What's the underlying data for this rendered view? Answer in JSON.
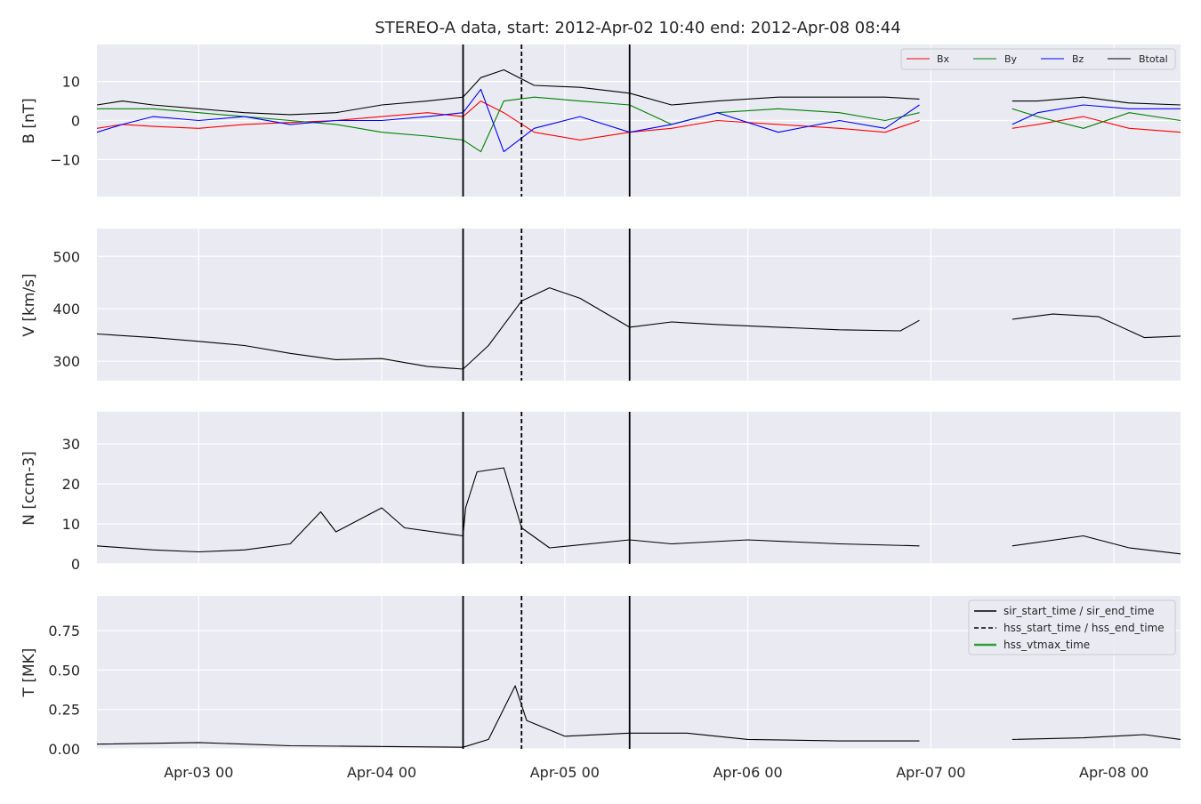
{
  "figure": {
    "title": "STEREO-A data, start: 2012-Apr-02 10:40  end: 2012-Apr-08 08:44"
  },
  "chart_data": {
    "type": "line",
    "time_axis": {
      "start": "2012-Apr-02 10:40",
      "end": "2012-Apr-08 08:44",
      "ticks": [
        {
          "t": "2012-Apr-03 00:00",
          "label": "Apr-03 00"
        },
        {
          "t": "2012-Apr-04 00:00",
          "label": "Apr-04 00"
        },
        {
          "t": "2012-Apr-05 00:00",
          "label": "Apr-05 00"
        },
        {
          "t": "2012-Apr-06 00:00",
          "label": "Apr-06 00"
        },
        {
          "t": "2012-Apr-07 00:00",
          "label": "Apr-07 00"
        },
        {
          "t": "2012-Apr-08 00:00",
          "label": "Apr-08 00"
        }
      ],
      "data_gap": [
        "2012-Apr-06 22:30",
        "2012-Apr-07 10:40"
      ]
    },
    "event_lines": [
      {
        "t": "2012-Apr-04 10:40",
        "style": "solid"
      },
      {
        "t": "2012-Apr-04 18:20",
        "style": "dashed"
      },
      {
        "t": "2012-Apr-05 08:30",
        "style": "solid"
      }
    ],
    "panels": [
      {
        "id": "b",
        "ylabel": "B [nT]",
        "ylim": [
          -19.5,
          19.5
        ],
        "yticks": [
          {
            "v": 10,
            "label": "10"
          },
          {
            "v": 0,
            "label": "0"
          },
          {
            "v": -10,
            "label": "−10"
          }
        ],
        "series": [
          {
            "name": "Bx",
            "color": "#ff0000",
            "points": [
              [
                "2012-Apr-02 10:40",
                -2
              ],
              [
                "2012-Apr-02 14:00",
                -1
              ],
              [
                "2012-Apr-02 18:00",
                -1.5
              ],
              [
                "2012-Apr-03 00:00",
                -2
              ],
              [
                "2012-Apr-03 06:00",
                -1
              ],
              [
                "2012-Apr-03 12:00",
                -0.5
              ],
              [
                "2012-Apr-03 18:00",
                0
              ],
              [
                "2012-Apr-04 00:00",
                1
              ],
              [
                "2012-Apr-04 06:00",
                2
              ],
              [
                "2012-Apr-04 10:40",
                1
              ],
              [
                "2012-Apr-04 13:00",
                5
              ],
              [
                "2012-Apr-04 16:00",
                2
              ],
              [
                "2012-Apr-04 20:00",
                -3
              ],
              [
                "2012-Apr-05 02:00",
                -5
              ],
              [
                "2012-Apr-05 08:30",
                -3
              ],
              [
                "2012-Apr-05 14:00",
                -2
              ],
              [
                "2012-Apr-05 20:00",
                0
              ],
              [
                "2012-Apr-06 04:00",
                -1
              ],
              [
                "2012-Apr-06 12:00",
                -2
              ],
              [
                "2012-Apr-06 18:00",
                -3
              ],
              [
                "2012-Apr-06 22:30",
                0
              ],
              null,
              [
                "2012-Apr-07 10:40",
                -2
              ],
              [
                "2012-Apr-07 14:00",
                -1
              ],
              [
                "2012-Apr-07 20:00",
                1
              ],
              [
                "2012-Apr-08 02:00",
                -2
              ],
              [
                "2012-Apr-08 08:44",
                -3
              ]
            ]
          },
          {
            "name": "By",
            "color": "#008000",
            "points": [
              [
                "2012-Apr-02 10:40",
                3
              ],
              [
                "2012-Apr-02 14:00",
                3
              ],
              [
                "2012-Apr-02 18:00",
                3
              ],
              [
                "2012-Apr-03 00:00",
                2
              ],
              [
                "2012-Apr-03 06:00",
                1
              ],
              [
                "2012-Apr-03 12:00",
                0
              ],
              [
                "2012-Apr-03 18:00",
                -1
              ],
              [
                "2012-Apr-04 00:00",
                -3
              ],
              [
                "2012-Apr-04 06:00",
                -4
              ],
              [
                "2012-Apr-04 10:40",
                -5
              ],
              [
                "2012-Apr-04 13:00",
                -8
              ],
              [
                "2012-Apr-04 16:00",
                5
              ],
              [
                "2012-Apr-04 20:00",
                6
              ],
              [
                "2012-Apr-05 02:00",
                5
              ],
              [
                "2012-Apr-05 08:30",
                4
              ],
              [
                "2012-Apr-05 14:00",
                -1
              ],
              [
                "2012-Apr-05 20:00",
                2
              ],
              [
                "2012-Apr-06 04:00",
                3
              ],
              [
                "2012-Apr-06 12:00",
                2
              ],
              [
                "2012-Apr-06 18:00",
                0
              ],
              [
                "2012-Apr-06 22:30",
                2
              ],
              null,
              [
                "2012-Apr-07 10:40",
                3
              ],
              [
                "2012-Apr-07 14:00",
                1
              ],
              [
                "2012-Apr-07 20:00",
                -2
              ],
              [
                "2012-Apr-08 02:00",
                2
              ],
              [
                "2012-Apr-08 08:44",
                0
              ]
            ]
          },
          {
            "name": "Bz",
            "color": "#0000ff",
            "points": [
              [
                "2012-Apr-02 10:40",
                -3
              ],
              [
                "2012-Apr-02 14:00",
                -1
              ],
              [
                "2012-Apr-02 18:00",
                1
              ],
              [
                "2012-Apr-03 00:00",
                0
              ],
              [
                "2012-Apr-03 06:00",
                1
              ],
              [
                "2012-Apr-03 12:00",
                -1
              ],
              [
                "2012-Apr-03 18:00",
                0
              ],
              [
                "2012-Apr-04 00:00",
                0
              ],
              [
                "2012-Apr-04 06:00",
                1
              ],
              [
                "2012-Apr-04 10:40",
                2
              ],
              [
                "2012-Apr-04 13:00",
                8
              ],
              [
                "2012-Apr-04 16:00",
                -8
              ],
              [
                "2012-Apr-04 20:00",
                -2
              ],
              [
                "2012-Apr-05 02:00",
                1
              ],
              [
                "2012-Apr-05 08:30",
                -3
              ],
              [
                "2012-Apr-05 14:00",
                -1
              ],
              [
                "2012-Apr-05 20:00",
                2
              ],
              [
                "2012-Apr-06 04:00",
                -3
              ],
              [
                "2012-Apr-06 12:00",
                0
              ],
              [
                "2012-Apr-06 18:00",
                -2
              ],
              [
                "2012-Apr-06 22:30",
                4
              ],
              null,
              [
                "2012-Apr-07 10:40",
                -1
              ],
              [
                "2012-Apr-07 14:00",
                2
              ],
              [
                "2012-Apr-07 20:00",
                4
              ],
              [
                "2012-Apr-08 02:00",
                3
              ],
              [
                "2012-Apr-08 08:44",
                3
              ]
            ]
          },
          {
            "name": "Btotal",
            "color": "#000000",
            "points": [
              [
                "2012-Apr-02 10:40",
                4
              ],
              [
                "2012-Apr-02 14:00",
                5
              ],
              [
                "2012-Apr-02 18:00",
                4
              ],
              [
                "2012-Apr-03 00:00",
                3
              ],
              [
                "2012-Apr-03 06:00",
                2
              ],
              [
                "2012-Apr-03 12:00",
                1.5
              ],
              [
                "2012-Apr-03 18:00",
                2
              ],
              [
                "2012-Apr-04 00:00",
                4
              ],
              [
                "2012-Apr-04 06:00",
                5
              ],
              [
                "2012-Apr-04 10:40",
                6
              ],
              [
                "2012-Apr-04 13:00",
                11
              ],
              [
                "2012-Apr-04 16:00",
                13
              ],
              [
                "2012-Apr-04 20:00",
                9
              ],
              [
                "2012-Apr-05 02:00",
                8.5
              ],
              [
                "2012-Apr-05 08:30",
                7
              ],
              [
                "2012-Apr-05 14:00",
                4
              ],
              [
                "2012-Apr-05 20:00",
                5
              ],
              [
                "2012-Apr-06 04:00",
                6
              ],
              [
                "2012-Apr-06 12:00",
                6
              ],
              [
                "2012-Apr-06 18:00",
                6
              ],
              [
                "2012-Apr-06 22:30",
                5.5
              ],
              null,
              [
                "2012-Apr-07 10:40",
                5
              ],
              [
                "2012-Apr-07 14:00",
                5
              ],
              [
                "2012-Apr-07 20:00",
                6
              ],
              [
                "2012-Apr-08 02:00",
                4.5
              ],
              [
                "2012-Apr-08 08:44",
                4
              ]
            ]
          }
        ]
      },
      {
        "id": "v",
        "ylabel": "V [km/s]",
        "ylim": [
          263,
          553
        ],
        "yticks": [
          {
            "v": 500,
            "label": "500"
          },
          {
            "v": 400,
            "label": "400"
          },
          {
            "v": 300,
            "label": "300"
          }
        ],
        "series": [
          {
            "color": "#000000",
            "points": [
              [
                "2012-Apr-02 10:40",
                352
              ],
              [
                "2012-Apr-02 18:00",
                345
              ],
              [
                "2012-Apr-03 00:00",
                338
              ],
              [
                "2012-Apr-03 06:00",
                330
              ],
              [
                "2012-Apr-03 12:00",
                315
              ],
              [
                "2012-Apr-03 18:00",
                303
              ],
              [
                "2012-Apr-04 00:00",
                305
              ],
              [
                "2012-Apr-04 06:00",
                290
              ],
              [
                "2012-Apr-04 10:40",
                285
              ],
              [
                "2012-Apr-04 14:00",
                330
              ],
              [
                "2012-Apr-04 18:20",
                415
              ],
              [
                "2012-Apr-04 22:00",
                440
              ],
              [
                "2012-Apr-05 02:00",
                420
              ],
              [
                "2012-Apr-05 08:30",
                365
              ],
              [
                "2012-Apr-05 14:00",
                375
              ],
              [
                "2012-Apr-05 20:00",
                370
              ],
              [
                "2012-Apr-06 04:00",
                365
              ],
              [
                "2012-Apr-06 12:00",
                360
              ],
              [
                "2012-Apr-06 20:00",
                358
              ],
              [
                "2012-Apr-06 22:30",
                378
              ],
              null,
              [
                "2012-Apr-07 10:40",
                380
              ],
              [
                "2012-Apr-07 16:00",
                390
              ],
              [
                "2012-Apr-07 22:00",
                385
              ],
              [
                "2012-Apr-08 04:00",
                345
              ],
              [
                "2012-Apr-08 08:44",
                348
              ]
            ]
          }
        ]
      },
      {
        "id": "n",
        "ylabel": "N [ccm-3]",
        "ylim": [
          0,
          38
        ],
        "yticks": [
          {
            "v": 30,
            "label": "30"
          },
          {
            "v": 20,
            "label": "20"
          },
          {
            "v": 10,
            "label": "10"
          },
          {
            "v": 0,
            "label": "0"
          }
        ],
        "series": [
          {
            "color": "#000000",
            "points": [
              [
                "2012-Apr-02 10:40",
                4.5
              ],
              [
                "2012-Apr-02 18:00",
                3.5
              ],
              [
                "2012-Apr-03 00:00",
                3
              ],
              [
                "2012-Apr-03 06:00",
                3.5
              ],
              [
                "2012-Apr-03 12:00",
                5
              ],
              [
                "2012-Apr-03 16:00",
                13
              ],
              [
                "2012-Apr-03 18:00",
                8
              ],
              [
                "2012-Apr-04 00:00",
                14
              ],
              [
                "2012-Apr-04 03:00",
                9
              ],
              [
                "2012-Apr-04 10:40",
                7
              ],
              [
                "2012-Apr-04 11:00",
                14
              ],
              [
                "2012-Apr-04 12:30",
                23
              ],
              [
                "2012-Apr-04 16:00",
                24
              ],
              [
                "2012-Apr-04 18:20",
                9
              ],
              [
                "2012-Apr-04 22:00",
                4
              ],
              [
                "2012-Apr-05 08:30",
                6
              ],
              [
                "2012-Apr-05 14:00",
                5
              ],
              [
                "2012-Apr-06 00:00",
                6
              ],
              [
                "2012-Apr-06 12:00",
                5
              ],
              [
                "2012-Apr-06 22:30",
                4.5
              ],
              null,
              [
                "2012-Apr-07 10:40",
                4.5
              ],
              [
                "2012-Apr-07 20:00",
                7
              ],
              [
                "2012-Apr-08 02:00",
                4
              ],
              [
                "2012-Apr-08 08:44",
                2.5
              ]
            ]
          }
        ]
      },
      {
        "id": "t",
        "ylabel": "T [MK]",
        "ylim": [
          0,
          0.97
        ],
        "yticks": [
          {
            "v": 0.75,
            "label": "0.75"
          },
          {
            "v": 0.5,
            "label": "0.50"
          },
          {
            "v": 0.25,
            "label": "0.25"
          },
          {
            "v": 0,
            "label": "0.00"
          }
        ],
        "series": [
          {
            "color": "#000000",
            "points": [
              [
                "2012-Apr-02 10:40",
                0.03
              ],
              [
                "2012-Apr-03 00:00",
                0.04
              ],
              [
                "2012-Apr-03 12:00",
                0.02
              ],
              [
                "2012-Apr-04 10:40",
                0.01
              ],
              [
                "2012-Apr-04 14:00",
                0.06
              ],
              [
                "2012-Apr-04 17:30",
                0.4
              ],
              [
                "2012-Apr-04 19:00",
                0.18
              ],
              [
                "2012-Apr-05 00:00",
                0.08
              ],
              [
                "2012-Apr-05 08:30",
                0.1
              ],
              [
                "2012-Apr-05 16:00",
                0.1
              ],
              [
                "2012-Apr-06 00:00",
                0.06
              ],
              [
                "2012-Apr-06 12:00",
                0.05
              ],
              [
                "2012-Apr-06 22:30",
                0.05
              ],
              null,
              [
                "2012-Apr-07 10:40",
                0.06
              ],
              [
                "2012-Apr-07 20:00",
                0.07
              ],
              [
                "2012-Apr-08 04:00",
                0.09
              ],
              [
                "2012-Apr-08 08:44",
                0.06
              ]
            ]
          }
        ]
      }
    ],
    "legends": {
      "b": {
        "placement": "top-right",
        "entries": [
          "Bx",
          "By",
          "Bz",
          "Btotal"
        ]
      },
      "t": {
        "placement": "top-right",
        "entries": [
          {
            "label": "sir_start_time / sir_end_time",
            "style": "solid",
            "color": "#000000"
          },
          {
            "label": "hss_start_time / hss_end_time",
            "style": "dashed",
            "color": "#000000"
          },
          {
            "label": "hss_vtmax_time",
            "style": "solid",
            "color": "#2ca02c"
          }
        ]
      }
    },
    "grid": true,
    "background": "#eaeaf2"
  }
}
